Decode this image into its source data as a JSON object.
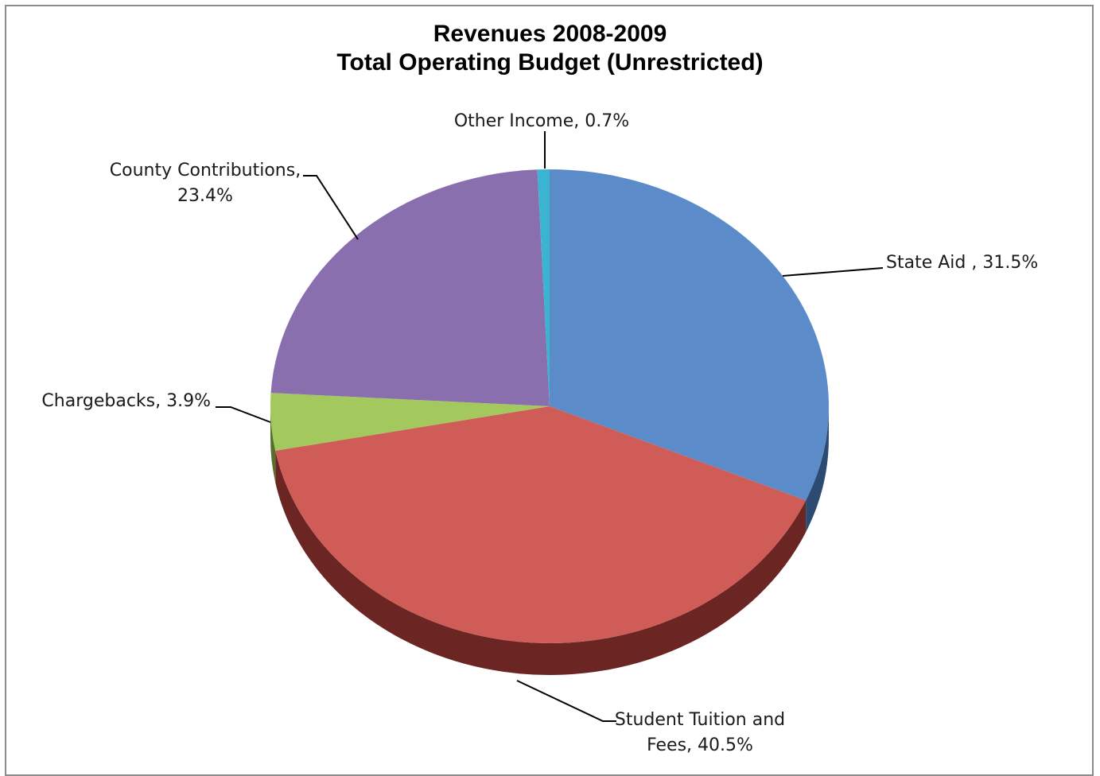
{
  "chart_data": {
    "type": "pie",
    "title": "Revenues 2008-2009",
    "subtitle": "Total Operating Budget (Unrestricted)",
    "unit": "%",
    "slices": [
      {
        "name": "State Aid",
        "value": 31.5,
        "color": "#5b8cc9",
        "side_color": "#2c4a72",
        "label_lines": [
          "State Aid , 31.5%"
        ]
      },
      {
        "name": "Student Tuition and Fees",
        "value": 40.5,
        "color": "#d05c58",
        "side_color": "#6b2523",
        "label_lines": [
          "Student Tuition and",
          "Fees, 40.5%"
        ]
      },
      {
        "name": "Chargebacks",
        "value": 3.9,
        "color": "#a3c85e",
        "side_color": "#55702b",
        "label_lines": [
          "Chargebacks, 3.9%"
        ]
      },
      {
        "name": "County Contributions",
        "value": 23.4,
        "color": "#8a6fae",
        "side_color": "#4b3a63",
        "label_lines": [
          "County Contributions,",
          "23.4%"
        ]
      },
      {
        "name": "Other Income",
        "value": 0.7,
        "color": "#3ab4d1",
        "side_color": "#1f6a7c",
        "label_lines": [
          "Other Income, 0.7%"
        ]
      }
    ]
  }
}
